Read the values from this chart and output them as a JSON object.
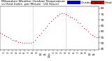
{
  "title_line": "Milwaukee Weather Outdoor Temperature vs Heat Index per Minute (24 Hours)",
  "bg_color": "#ffffff",
  "plot_bg_color": "#ffffff",
  "dot_color": "#ff0000",
  "legend_blue_color": "#0000cc",
  "legend_red_color": "#cc0000",
  "legend_blue_label": "Outdoor Temp",
  "legend_red_label": "Heat Index",
  "ylim": [
    44,
    82
  ],
  "yticks": [
    45,
    50,
    55,
    60,
    65,
    70,
    75,
    80
  ],
  "xlim": [
    0,
    1440
  ],
  "vline_positions": [
    480,
    960
  ],
  "title_fontsize": 3.2,
  "tick_fontsize": 3.0,
  "legend_fontsize": 3.0,
  "marker_size": 0.8,
  "dpi": 100,
  "xtick_positions": [
    0,
    60,
    120,
    180,
    240,
    300,
    360,
    420,
    480,
    540,
    600,
    660,
    720,
    780,
    840,
    900,
    960,
    1020,
    1080,
    1140,
    1200,
    1260,
    1320,
    1380,
    1440
  ],
  "xtick_labels": [
    "12a",
    "1",
    "2",
    "3",
    "4",
    "5",
    "6",
    "7",
    "8",
    "9",
    "10",
    "11",
    "12p",
    "1",
    "2",
    "3",
    "4",
    "5",
    "6",
    "7",
    "8",
    "9",
    "10",
    "11",
    "12a"
  ],
  "temp_x": [
    0,
    30,
    60,
    90,
    120,
    150,
    180,
    210,
    240,
    270,
    300,
    330,
    360,
    390,
    420,
    450,
    480,
    510,
    540,
    570,
    600,
    630,
    660,
    690,
    720,
    750,
    780,
    810,
    840,
    870,
    900,
    930,
    960,
    990,
    1020,
    1050,
    1080,
    1110,
    1140,
    1170,
    1200,
    1230,
    1260,
    1290,
    1320,
    1350,
    1380,
    1410,
    1440
  ],
  "temp_y": [
    59,
    58,
    57,
    56,
    55,
    54,
    53,
    52,
    52,
    51,
    51,
    50,
    50,
    50,
    50,
    50,
    51,
    53,
    55,
    57,
    59,
    61,
    63,
    65,
    67,
    69,
    71,
    72,
    74,
    75,
    76,
    76,
    75,
    74,
    73,
    72,
    71,
    70,
    68,
    67,
    65,
    63,
    62,
    60,
    58,
    57,
    56,
    55,
    55
  ]
}
